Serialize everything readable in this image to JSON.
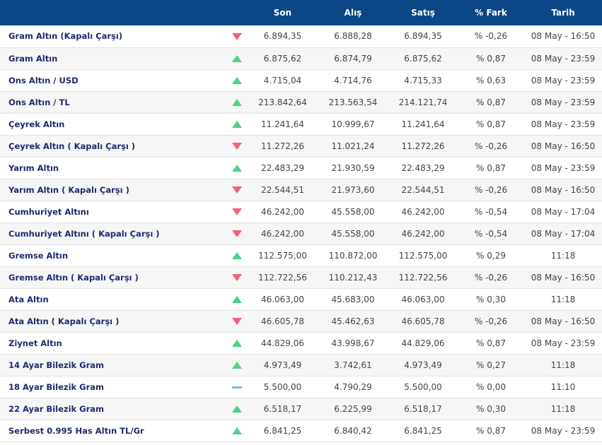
{
  "colors": {
    "header_bg": "#0b4687",
    "up": "#4cd28b",
    "down": "#f2617b",
    "flat": "#6fc3df"
  },
  "table": {
    "headers": {
      "name": "",
      "son": "Son",
      "alis": "Alış",
      "satis": "Satış",
      "fark": "% Fark",
      "tarih": "Tarih"
    },
    "rows": [
      {
        "name": "Gram Altın (Kapalı Çarşı)",
        "trend": "down",
        "son": "6.894,35",
        "alis": "6.888,28",
        "satis": "6.894,35",
        "fark": "% -0,26",
        "tarih": "08 May - 16:50"
      },
      {
        "name": "Gram Altın",
        "trend": "up",
        "son": "6.875,62",
        "alis": "6.874,79",
        "satis": "6.875,62",
        "fark": "% 0,87",
        "tarih": "08 May - 23:59"
      },
      {
        "name": "Ons Altın / USD",
        "trend": "up",
        "son": "4.715,04",
        "alis": "4.714,76",
        "satis": "4.715,33",
        "fark": "% 0,63",
        "tarih": "08 May - 23:59"
      },
      {
        "name": "Ons Altın / TL",
        "trend": "up",
        "son": "213.842,64",
        "alis": "213.563,54",
        "satis": "214.121,74",
        "fark": "% 0,87",
        "tarih": "08 May - 23:59"
      },
      {
        "name": "Çeyrek Altın",
        "trend": "up",
        "son": "11.241,64",
        "alis": "10.999,67",
        "satis": "11.241,64",
        "fark": "% 0,87",
        "tarih": "08 May - 23:59"
      },
      {
        "name": "Çeyrek Altın ( Kapalı Çarşı )",
        "trend": "down",
        "son": "11.272,26",
        "alis": "11.021,24",
        "satis": "11.272,26",
        "fark": "% -0,26",
        "tarih": "08 May - 16:50"
      },
      {
        "name": "Yarım Altın",
        "trend": "up",
        "son": "22.483,29",
        "alis": "21.930,59",
        "satis": "22.483,29",
        "fark": "% 0,87",
        "tarih": "08 May - 23:59"
      },
      {
        "name": "Yarım Altın ( Kapalı Çarşı )",
        "trend": "down",
        "son": "22.544,51",
        "alis": "21.973,60",
        "satis": "22.544,51",
        "fark": "% -0,26",
        "tarih": "08 May - 16:50"
      },
      {
        "name": "Cumhuriyet Altını",
        "trend": "down",
        "son": "46.242,00",
        "alis": "45.558,00",
        "satis": "46.242,00",
        "fark": "% -0,54",
        "tarih": "08 May - 17:04"
      },
      {
        "name": "Cumhuriyet Altını ( Kapalı Çarşı )",
        "trend": "down",
        "son": "46.242,00",
        "alis": "45.558,00",
        "satis": "46.242,00",
        "fark": "% -0,54",
        "tarih": "08 May - 17:04"
      },
      {
        "name": "Gremse Altın",
        "trend": "up",
        "son": "112.575,00",
        "alis": "110.872,00",
        "satis": "112.575,00",
        "fark": "% 0,29",
        "tarih": "11:18"
      },
      {
        "name": "Gremse Altın ( Kapalı Çarşı )",
        "trend": "down",
        "son": "112.722,56",
        "alis": "110.212,43",
        "satis": "112.722,56",
        "fark": "% -0,26",
        "tarih": "08 May - 16:50"
      },
      {
        "name": "Ata Altın",
        "trend": "up",
        "son": "46.063,00",
        "alis": "45.683,00",
        "satis": "46.063,00",
        "fark": "% 0,30",
        "tarih": "11:18"
      },
      {
        "name": "Ata Altın ( Kapalı Çarşı )",
        "trend": "down",
        "son": "46.605,78",
        "alis": "45.462,63",
        "satis": "46.605,78",
        "fark": "% -0,26",
        "tarih": "08 May - 16:50"
      },
      {
        "name": "Ziynet Altın",
        "trend": "up",
        "son": "44.829,06",
        "alis": "43.998,67",
        "satis": "44.829,06",
        "fark": "% 0,87",
        "tarih": "08 May - 23:59"
      },
      {
        "name": "14 Ayar Bilezik Gram",
        "trend": "up",
        "son": "4.973,49",
        "alis": "3.742,61",
        "satis": "4.973,49",
        "fark": "% 0,27",
        "tarih": "11:18"
      },
      {
        "name": "18 Ayar Bilezik Gram",
        "trend": "flat",
        "son": "5.500,00",
        "alis": "4.790,29",
        "satis": "5.500,00",
        "fark": "% 0,00",
        "tarih": "11:10"
      },
      {
        "name": "22 Ayar Bilezik Gram",
        "trend": "up",
        "son": "6.518,17",
        "alis": "6.225,99",
        "satis": "6.518,17",
        "fark": "% 0,30",
        "tarih": "11:18"
      },
      {
        "name": "Serbest 0.995 Has Altın TL/Gr",
        "trend": "up",
        "son": "6.841,25",
        "alis": "6.840,42",
        "satis": "6.841,25",
        "fark": "% 0,87",
        "tarih": "08 May - 23:59"
      }
    ]
  }
}
